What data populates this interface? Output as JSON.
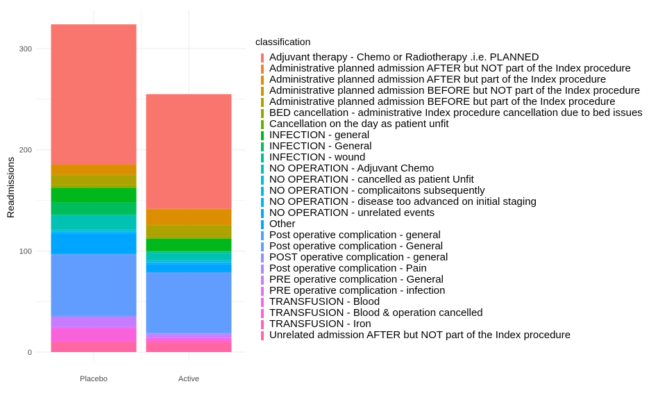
{
  "chart_data": {
    "type": "bar",
    "stacked": true,
    "categories": [
      "Placebo",
      "Active"
    ],
    "ylabel": "Readmissions",
    "xlabel": "",
    "ylim": [
      0,
      330
    ],
    "yticks": [
      0,
      100,
      200,
      300
    ],
    "grid": true,
    "legend_position": "right",
    "legend_title": "classification",
    "series": [
      {
        "name": "Adjuvant therapy - Chemo or Radiotherapy .i.e. PLANNED",
        "color": "#F8766D",
        "values": [
          138,
          113
        ]
      },
      {
        "name": "Administrative planned admission AFTER but NOT part of the Index procedure",
        "color": "#EC8239",
        "values": [
          1,
          1
        ]
      },
      {
        "name": "Administrative planned admission AFTER but part of the Index procedure",
        "color": "#DB8E00",
        "values": [
          9,
          15
        ]
      },
      {
        "name": "Administrative planned admission BEFORE but NOT part of the Index procedure",
        "color": "#C79800",
        "values": [
          1,
          1
        ]
      },
      {
        "name": "Administrative planned admission BEFORE but part of the Index procedure",
        "color": "#AEA200",
        "values": [
          10,
          11
        ]
      },
      {
        "name": "BED cancellation - administrative Index procedure cancellation due to bed issues",
        "color": "#8FAA00",
        "values": [
          2,
          1
        ]
      },
      {
        "name": "Cancellation on the day as patient unfit",
        "color": "#64B200",
        "values": [
          1,
          1
        ]
      },
      {
        "name": "INFECTION - general",
        "color": "#00B81B",
        "values": [
          14,
          12
        ]
      },
      {
        "name": "INFECTION - General",
        "color": "#00BD5C",
        "values": [
          12,
          1
        ]
      },
      {
        "name": "INFECTION - wound",
        "color": "#00C08E",
        "values": [
          1,
          1
        ]
      },
      {
        "name": "NO OPERATION - Adjuvant Chemo",
        "color": "#00C1B2",
        "values": [
          14,
          7
        ]
      },
      {
        "name": "NO OPERATION - cancelled as patient Unfit",
        "color": "#00BFD0",
        "values": [
          1,
          1
        ]
      },
      {
        "name": "NO OPERATION - complicaitons subsequently",
        "color": "#00BBE7",
        "values": [
          1,
          1
        ]
      },
      {
        "name": "NO OPERATION - disease too advanced on initial staging",
        "color": "#00B3F5",
        "values": [
          1,
          1
        ]
      },
      {
        "name": "NO OPERATION - unrelated events",
        "color": "#00A9FF",
        "values": [
          1,
          1
        ]
      },
      {
        "name": "Other",
        "color": "#00A5FF",
        "values": [
          20,
          8
        ]
      },
      {
        "name": "Post operative complication - general",
        "color": "#529EFF",
        "values": [
          1,
          1
        ]
      },
      {
        "name": "Post operative complication - General",
        "color": "#619CFF",
        "values": [
          60,
          59
        ]
      },
      {
        "name": "POST operative complication - general",
        "color": "#8F91FF",
        "values": [
          1,
          1
        ]
      },
      {
        "name": "Post operative complication - Pain",
        "color": "#AE87FF",
        "values": [
          1,
          1
        ]
      },
      {
        "name": "PRE operative complication - General",
        "color": "#C77CFF",
        "values": [
          9,
          2
        ]
      },
      {
        "name": "PRE operative complication - infection",
        "color": "#DE71F9",
        "values": [
          1,
          1
        ]
      },
      {
        "name": "TRANSFUSION - Blood",
        "color": "#ED68ED",
        "values": [
          1,
          1
        ]
      },
      {
        "name": "TRANSFUSION - Blood & operation cancelled",
        "color": "#FA62DB",
        "values": [
          12,
          2
        ]
      },
      {
        "name": "TRANSFUSION - Iron",
        "color": "#FF61C3",
        "values": [
          1,
          1
        ]
      },
      {
        "name": "Unrelated admission AFTER but NOT part of the Index procedure",
        "color": "#FF67A4",
        "values": [
          10,
          10
        ]
      }
    ]
  }
}
